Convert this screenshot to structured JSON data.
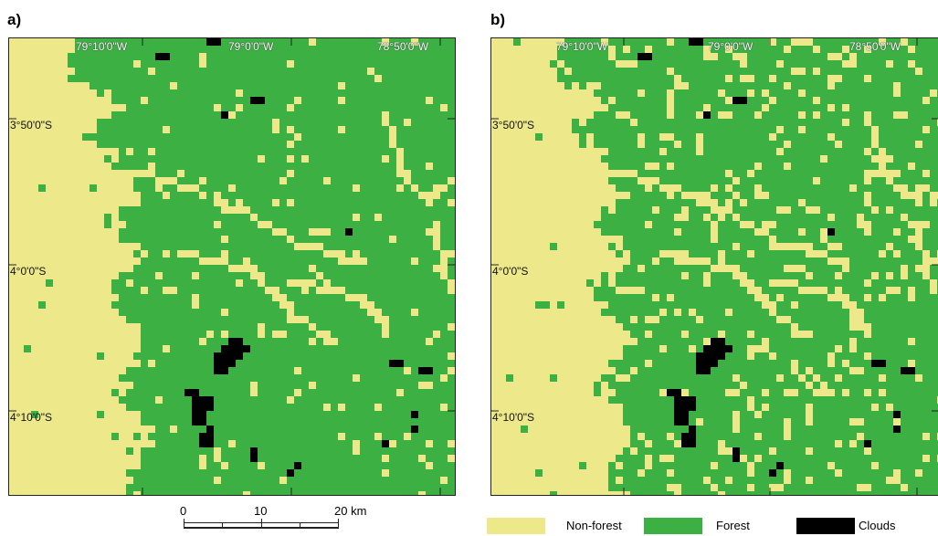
{
  "panels": [
    {
      "letter": "a)",
      "lon_labels": [
        "79°10'0\"W",
        "79°0'0\"W",
        "78°50'0\"W"
      ],
      "lat_labels": [
        "3°50'0\"S",
        "4°0'0\"S",
        "4°10'0\"S"
      ]
    },
    {
      "letter": "b)",
      "lon_labels": [
        "79°10'0\"W",
        "79°0'0\"W",
        "78°50'0\"W"
      ],
      "lat_labels": [
        "3°50'0\"S",
        "4°0'0\"S",
        "4°10'0\"S"
      ]
    }
  ],
  "scale_bar": {
    "labels": [
      "0",
      "10",
      "20 km"
    ]
  },
  "legend": {
    "items": [
      {
        "label": "Non-forest",
        "color": "#EDE98A"
      },
      {
        "label": "Forest",
        "color": "#3CB043"
      },
      {
        "label": "Clouds",
        "color": "#000000"
      }
    ]
  },
  "colors": {
    "non_forest": "#EDE98A",
    "forest": "#3CB043",
    "clouds": "#000000"
  }
}
